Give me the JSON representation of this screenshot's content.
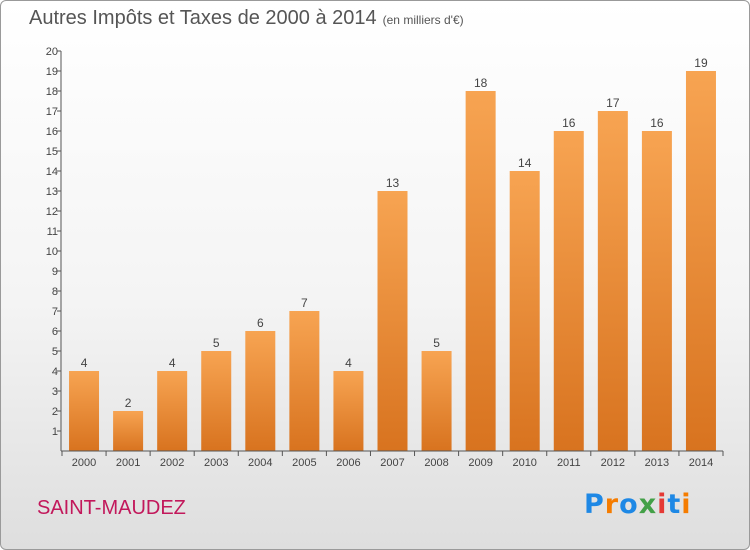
{
  "header": {
    "title": "Autres Impôts et Taxes de 2000 à 2014",
    "unit": "(en milliers d'€)"
  },
  "footer": {
    "town": "SAINT-MAUDEZ",
    "logo": "Proxiti",
    "logo_colors": [
      "#1e88e5",
      "#f57c00",
      "#1e88e5",
      "#43a047",
      "#e53935",
      "#1e88e5",
      "#f57c00"
    ]
  },
  "chart_data": {
    "type": "bar",
    "title": "Autres Impôts et Taxes de 2000 à 2014",
    "xlabel": "",
    "ylabel": "",
    "categories": [
      "2000",
      "2001",
      "2002",
      "2003",
      "2004",
      "2005",
      "2006",
      "2007",
      "2008",
      "2009",
      "2010",
      "2011",
      "2012",
      "2013",
      "2014"
    ],
    "values": [
      4,
      2,
      4,
      5,
      6,
      7,
      4,
      13,
      5,
      18,
      14,
      16,
      17,
      16,
      19
    ],
    "ylim": [
      0,
      20
    ],
    "yticks": [
      1,
      2,
      3,
      4,
      5,
      6,
      7,
      8,
      9,
      10,
      11,
      12,
      13,
      14,
      15,
      16,
      17,
      18,
      19,
      20
    ],
    "grid": false,
    "bar_color_top": "#f7a452",
    "bar_color_bottom": "#d8731f"
  }
}
